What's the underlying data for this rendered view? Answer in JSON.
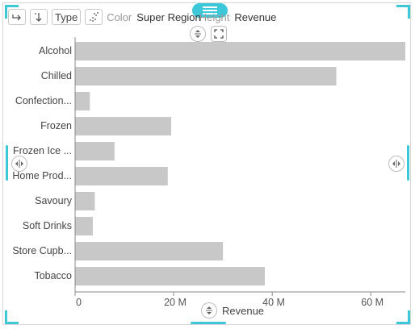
{
  "toolbar": {
    "type_label": "Type",
    "color_label": "Color",
    "color_value": "Super Region",
    "height_label": "Height",
    "size_value": "Revenue"
  },
  "x_axis_title": "Revenue",
  "colors": {
    "accent": "#3cc8d8",
    "bar": "#c8c8c8",
    "axis": "#8a8a8a"
  },
  "chart_data": {
    "type": "bar",
    "orientation": "horizontal",
    "categories": [
      "Alcohol",
      "Chilled",
      "Confection...",
      "Frozen",
      "Frozen Ice ...",
      "Home Prod...",
      "Savoury",
      "Soft Drinks",
      "Store Cupb...",
      "Tobacco"
    ],
    "values": [
      67000000,
      53000000,
      3000000,
      19500000,
      8000000,
      18800000,
      4000000,
      3600000,
      30000000,
      38500000
    ],
    "xlabel": "Revenue",
    "xlim": [
      0,
      67000000
    ],
    "xticks": [
      0,
      20000000,
      40000000,
      60000000
    ],
    "xtick_labels": [
      "0",
      "20 M",
      "40 M",
      "60 M"
    ],
    "grid": false
  }
}
